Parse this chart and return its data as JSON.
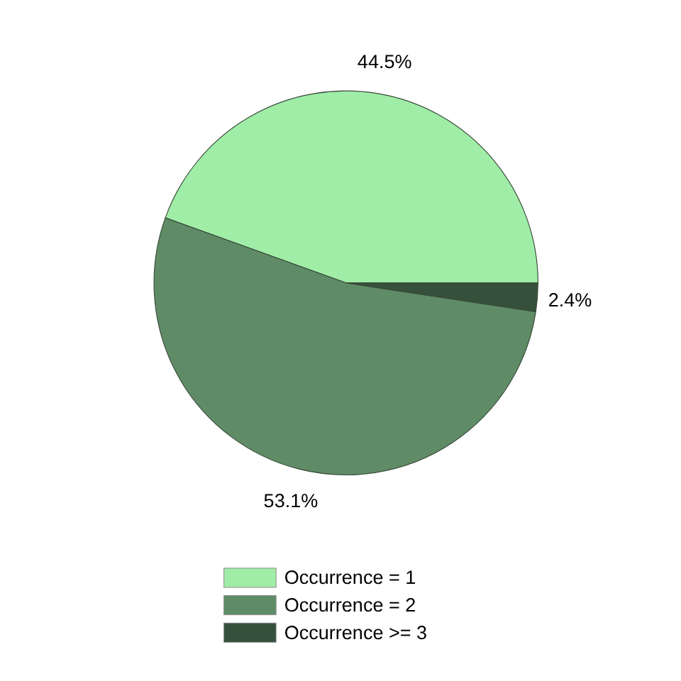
{
  "chart_data": {
    "type": "pie",
    "categories": [
      "Occurrence = 1",
      "Occurrence = 2",
      "Occurrence >= 3"
    ],
    "values": [
      44.5,
      53.1,
      2.4
    ],
    "colors": [
      "#a0eda8",
      "#5f8c66",
      "#36513b"
    ],
    "value_labels": [
      "44.5%",
      "53.1%",
      "2.4%"
    ],
    "legend": "bottom"
  }
}
